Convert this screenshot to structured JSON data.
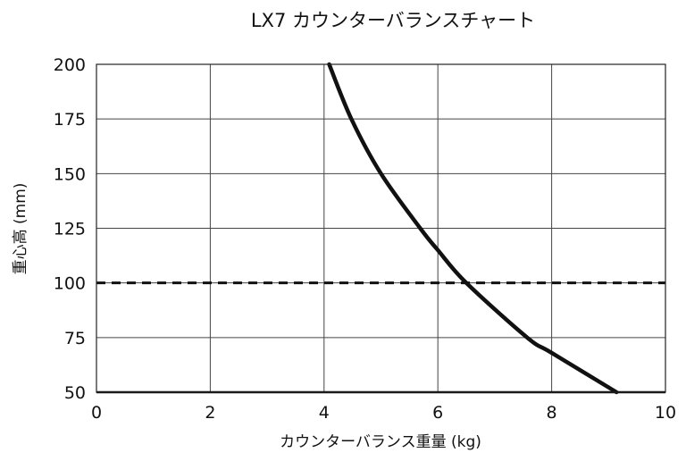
{
  "chart_data": {
    "type": "line",
    "title": "LX7 カウンターバランスチャート",
    "xlabel": "カウンターバランス重量 (kg)",
    "ylabel": "重心高 (mm)",
    "xlim": [
      0,
      10
    ],
    "ylim": [
      50,
      200
    ],
    "xticks": [
      0,
      2,
      4,
      6,
      8,
      10
    ],
    "yticks": [
      50,
      75,
      100,
      125,
      150,
      175,
      200
    ],
    "grid": true,
    "series": [
      {
        "color": "#111111",
        "points": [
          [
            4.09,
            200
          ],
          [
            4.48,
            175
          ],
          [
            5.0,
            150
          ],
          [
            5.69,
            125
          ],
          [
            6.0,
            115
          ],
          [
            6.5,
            100
          ],
          [
            7.57,
            75
          ],
          [
            8.0,
            68
          ],
          [
            9.14,
            50
          ]
        ]
      }
    ],
    "reference_line": {
      "y": 100,
      "style": "dashed",
      "color": "#111111"
    }
  }
}
